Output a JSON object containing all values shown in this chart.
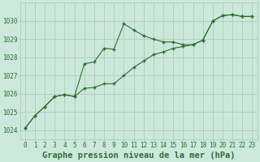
{
  "title": "Graphe pression niveau de la mer (hPa)",
  "background_color": "#cce8dc",
  "line_color": "#2d6e2d",
  "grid_color": "#a8c8b8",
  "xlim": [
    -0.5,
    23.5
  ],
  "ylim": [
    1023.5,
    1031.0
  ],
  "xticks": [
    0,
    1,
    2,
    3,
    4,
    5,
    6,
    7,
    8,
    9,
    10,
    11,
    12,
    13,
    14,
    15,
    16,
    17,
    18,
    19,
    20,
    21,
    22,
    23
  ],
  "yticks": [
    1024,
    1025,
    1026,
    1027,
    1028,
    1029,
    1030
  ],
  "line1_y": [
    1024.1,
    1024.8,
    1025.3,
    1025.85,
    1025.95,
    1025.85,
    1027.65,
    1027.75,
    1028.5,
    1028.45,
    1029.85,
    1029.5,
    1029.2,
    1029.0,
    1028.85,
    1028.85,
    1028.7,
    1028.7,
    1028.95,
    1030.0,
    1030.3,
    1030.35,
    1030.25,
    1030.25
  ],
  "line2_y": [
    1024.1,
    1024.8,
    1025.3,
    1025.85,
    1025.95,
    1025.85,
    1026.3,
    1026.35,
    1026.55,
    1026.55,
    1027.0,
    1027.45,
    1027.8,
    1028.15,
    1028.3,
    1028.5,
    1028.6,
    1028.7,
    1028.95,
    1030.0,
    1030.3,
    1030.35,
    1030.25,
    1030.25
  ],
  "title_fontsize": 7.5,
  "tick_fontsize": 5.5
}
